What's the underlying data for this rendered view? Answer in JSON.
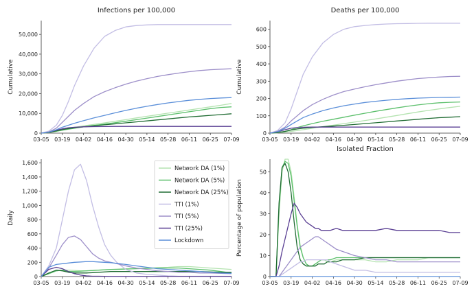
{
  "x_dates": [
    "03-05",
    "03-19",
    "04-02",
    "04-16",
    "04-30",
    "05-14",
    "05-28",
    "06-11",
    "06-25",
    "07-09"
  ],
  "colors": {
    "Network DA (1%)": "#b4e3b0",
    "Network DA (5%)": "#5bbf6b",
    "Network DA (25%)": "#1f6b32",
    "TTI (1%)": "#c2bde4",
    "TTI (5%)": "#9d8fc9",
    "TTI (25%)": "#5a3f93",
    "Lockdown": "#5b8fd9"
  },
  "legend_order": [
    "Network DA (1%)",
    "Network DA (5%)",
    "Network DA (25%)",
    "TTI (1%)",
    "TTI (5%)",
    "TTI (25%)",
    "Lockdown"
  ],
  "chart_data": [
    {
      "id": "infections",
      "type": "line",
      "title": "Infections per 100,000",
      "xlabel": "",
      "ylabel": "Cumulative",
      "ylim": [
        0,
        57000
      ],
      "yticks": [
        0,
        10000,
        20000,
        30000,
        40000,
        50000
      ],
      "ytick_labels": [
        "0",
        "10,000",
        "20,000",
        "30,000",
        "40,000",
        "50,000"
      ],
      "xtick_labels": [
        "03-05",
        "03-19",
        "04-02",
        "04-16",
        "04-30",
        "05-14",
        "05-28",
        "06-11",
        "06-25",
        "07-09"
      ],
      "x": [
        0,
        5,
        10,
        14,
        18,
        22,
        28,
        35,
        42,
        49,
        56,
        63,
        70,
        77,
        84,
        91,
        98,
        105,
        112,
        119,
        126
      ],
      "series": [
        {
          "name": "Network DA (1%)",
          "values": [
            0,
            300,
            1000,
            1700,
            2300,
            2900,
            3700,
            4400,
            5200,
            6000,
            6800,
            7700,
            8500,
            9300,
            10100,
            10900,
            11700,
            12500,
            13300,
            14100,
            15000
          ]
        },
        {
          "name": "Network DA (5%)",
          "values": [
            0,
            280,
            900,
            1500,
            2000,
            2500,
            3200,
            3900,
            4600,
            5300,
            6000,
            6800,
            7600,
            8400,
            9200,
            10000,
            10800,
            11600,
            12400,
            13000,
            13300
          ]
        },
        {
          "name": "Network DA (25%)",
          "values": [
            0,
            350,
            1100,
            1800,
            2300,
            2700,
            3200,
            3700,
            4200,
            4700,
            5200,
            5700,
            6200,
            6700,
            7200,
            7700,
            8200,
            8600,
            9000,
            9400,
            9800
          ]
        },
        {
          "name": "TTI (1%)",
          "values": [
            0,
            1000,
            4000,
            9000,
            16000,
            24000,
            34000,
            43000,
            49000,
            52000,
            53800,
            54500,
            54800,
            55000,
            55000,
            55000,
            55000,
            55000,
            55000,
            55000,
            55000
          ]
        },
        {
          "name": "TTI (5%)",
          "values": [
            0,
            600,
            2500,
            5500,
            8500,
            11500,
            15000,
            18500,
            21000,
            23000,
            24800,
            26300,
            27600,
            28700,
            29600,
            30400,
            31100,
            31700,
            32100,
            32400,
            32600
          ]
        },
        {
          "name": "TTI (25%)",
          "values": [
            0,
            500,
            1500,
            2200,
            2700,
            3000,
            3200,
            3300,
            3350,
            3400,
            3400,
            3400,
            3400,
            3400,
            3400,
            3400,
            3400,
            3400,
            3400,
            3400,
            3400
          ]
        },
        {
          "name": "Lockdown",
          "values": [
            0,
            500,
            1700,
            3000,
            4000,
            5000,
            6300,
            7700,
            9000,
            10300,
            11500,
            12600,
            13600,
            14500,
            15300,
            16000,
            16600,
            17100,
            17500,
            17800,
            18000
          ]
        }
      ]
    },
    {
      "id": "deaths",
      "type": "line",
      "title": "Deaths per 100,000",
      "xlabel": "",
      "ylabel": "Cumulative",
      "ylim": [
        0,
        650
      ],
      "yticks": [
        0,
        100,
        200,
        300,
        400,
        500,
        600
      ],
      "ytick_labels": [
        "0",
        "100",
        "200",
        "300",
        "400",
        "500",
        "600"
      ],
      "xtick_labels": [
        "03-05",
        "03-19",
        "04-02",
        "04-16",
        "04-30",
        "05-14",
        "05-28",
        "06-11",
        "06-25",
        "07-09"
      ],
      "x": [
        0,
        5,
        10,
        14,
        18,
        22,
        28,
        35,
        42,
        49,
        56,
        63,
        70,
        77,
        84,
        91,
        98,
        105,
        112,
        119,
        126
      ],
      "series": [
        {
          "name": "Network DA (1%)",
          "values": [
            0,
            2,
            6,
            10,
            15,
            20,
            28,
            37,
            46,
            55,
            64,
            73,
            82,
            92,
            102,
            112,
            122,
            131,
            140,
            148,
            155
          ]
        },
        {
          "name": "Network DA (5%)",
          "values": [
            0,
            3,
            10,
            20,
            32,
            42,
            55,
            68,
            80,
            92,
            104,
            115,
            126,
            136,
            146,
            155,
            163,
            170,
            175,
            178,
            180
          ]
        },
        {
          "name": "Network DA (25%)",
          "values": [
            0,
            3,
            10,
            18,
            24,
            28,
            33,
            37,
            41,
            45,
            50,
            55,
            60,
            65,
            70,
            75,
            80,
            85,
            89,
            92,
            95
          ]
        },
        {
          "name": "TTI (1%)",
          "values": [
            0,
            15,
            60,
            140,
            240,
            340,
            440,
            520,
            570,
            600,
            615,
            622,
            627,
            630,
            632,
            633,
            634,
            635,
            635,
            635,
            635
          ]
        },
        {
          "name": "TTI (5%)",
          "values": [
            0,
            10,
            35,
            70,
            100,
            130,
            165,
            195,
            220,
            240,
            255,
            268,
            280,
            290,
            300,
            308,
            315,
            320,
            324,
            327,
            328
          ]
        },
        {
          "name": "TTI (25%)",
          "values": [
            0,
            8,
            20,
            28,
            32,
            34,
            35,
            35,
            35,
            35,
            35,
            35,
            35,
            35,
            35,
            35,
            35,
            35,
            35,
            35,
            35
          ]
        },
        {
          "name": "Lockdown",
          "values": [
            0,
            8,
            28,
            50,
            70,
            90,
            110,
            130,
            145,
            158,
            168,
            177,
            184,
            190,
            195,
            199,
            202,
            204,
            206,
            207,
            208
          ]
        }
      ]
    },
    {
      "id": "daily",
      "type": "line",
      "title": "",
      "xlabel": "",
      "ylabel": "Daily",
      "ylim": [
        0,
        1650
      ],
      "yticks": [
        0,
        200,
        400,
        600,
        800,
        1000,
        1200,
        1400,
        1600
      ],
      "ytick_labels": [
        "0",
        "200",
        "400",
        "600",
        "800",
        "1,000",
        "1,200",
        "1,400",
        "1,600"
      ],
      "xtick_labels": [
        "03-05",
        "03-19",
        "04-02",
        "04-16",
        "04-30",
        "05-14",
        "05-28",
        "06-11",
        "06-25",
        "07-09"
      ],
      "x": [
        0,
        5,
        10,
        14,
        18,
        22,
        26,
        30,
        34,
        38,
        42,
        46,
        50,
        56,
        63,
        70,
        77,
        84,
        91,
        98,
        105,
        112,
        119,
        126
      ],
      "series": [
        {
          "name": "Network DA (1%)",
          "values": [
            0,
            40,
            80,
            90,
            90,
            85,
            80,
            80,
            85,
            90,
            95,
            100,
            105,
            110,
            115,
            120,
            125,
            130,
            140,
            140,
            130,
            120,
            110,
            100
          ]
        },
        {
          "name": "Network DA (5%)",
          "values": [
            0,
            40,
            80,
            90,
            70,
            70,
            75,
            80,
            85,
            90,
            95,
            100,
            100,
            105,
            110,
            115,
            120,
            120,
            120,
            110,
            100,
            90,
            70,
            50
          ]
        },
        {
          "name": "Network DA (25%)",
          "values": [
            0,
            50,
            90,
            80,
            60,
            50,
            50,
            50,
            55,
            60,
            65,
            70,
            70,
            70,
            70,
            70,
            70,
            70,
            70,
            70,
            70,
            65,
            60,
            60
          ]
        },
        {
          "name": "TTI (1%)",
          "values": [
            0,
            150,
            400,
            800,
            1200,
            1500,
            1580,
            1350,
            1000,
            700,
            450,
            300,
            200,
            100,
            50,
            30,
            20,
            10,
            5,
            5,
            5,
            5,
            5,
            5
          ]
        },
        {
          "name": "TTI (5%)",
          "values": [
            0,
            120,
            300,
            450,
            550,
            570,
            520,
            420,
            320,
            260,
            220,
            200,
            180,
            150,
            120,
            100,
            80,
            70,
            60,
            60,
            50,
            50,
            45,
            40
          ]
        },
        {
          "name": "TTI (25%)",
          "values": [
            0,
            100,
            130,
            110,
            70,
            40,
            20,
            10,
            5,
            5,
            3,
            2,
            2,
            2,
            2,
            2,
            2,
            2,
            2,
            2,
            2,
            2,
            2,
            2
          ]
        },
        {
          "name": "Lockdown",
          "values": [
            0,
            130,
            170,
            180,
            190,
            200,
            205,
            210,
            210,
            205,
            200,
            195,
            185,
            170,
            150,
            130,
            110,
            100,
            90,
            80,
            70,
            60,
            50,
            45
          ]
        }
      ]
    },
    {
      "id": "isolated",
      "type": "line",
      "title": "Isolated Fraction",
      "xlabel": "",
      "ylabel": "Percentage of population",
      "ylim": [
        0,
        56
      ],
      "yticks": [
        0,
        10,
        20,
        30,
        40,
        50
      ],
      "ytick_labels": [
        "0",
        "10",
        "20",
        "30",
        "40",
        "50"
      ],
      "xtick_labels": [
        "03-05",
        "03-19",
        "04-02",
        "04-16",
        "04-30",
        "05-14",
        "05-28",
        "06-11",
        "06-25",
        "07-09"
      ],
      "x": [
        0,
        4,
        6,
        8,
        10,
        12,
        14,
        16,
        18,
        20,
        22,
        24,
        26,
        28,
        30,
        32,
        34,
        36,
        38,
        40,
        44,
        48,
        52,
        56,
        63,
        70,
        77,
        84,
        91,
        98,
        105,
        112,
        119,
        126
      ],
      "series": [
        {
          "name": "Network DA (1%)",
          "values": [
            0,
            0,
            30,
            50,
            56,
            56,
            50,
            38,
            25,
            15,
            9,
            6,
            5,
            5,
            6,
            7,
            8,
            8,
            7,
            7,
            8,
            8,
            8,
            8,
            8,
            7,
            7,
            8,
            8,
            8,
            9,
            9,
            9,
            9
          ]
        },
        {
          "name": "Network DA (5%)",
          "values": [
            0,
            0,
            33,
            52,
            55,
            54,
            48,
            36,
            24,
            14,
            9,
            6,
            5,
            5,
            6,
            7,
            8,
            8,
            8,
            8,
            9,
            9,
            9,
            9,
            9,
            9,
            9,
            9,
            9,
            9,
            9,
            9,
            9,
            9
          ]
        },
        {
          "name": "Network DA (25%)",
          "values": [
            0,
            0,
            35,
            52,
            54,
            50,
            40,
            26,
            14,
            8,
            6,
            5,
            5,
            5,
            5,
            6,
            6,
            6,
            7,
            7,
            7,
            8,
            8,
            8,
            9,
            9,
            9,
            9,
            9,
            9,
            9,
            9,
            9,
            9
          ]
        },
        {
          "name": "TTI (1%)",
          "values": [
            0,
            0,
            0,
            1,
            2,
            3,
            4,
            5,
            6,
            7,
            7,
            8,
            8,
            8,
            8,
            8,
            8,
            8,
            8,
            7,
            6,
            5,
            4,
            3,
            3,
            2,
            2,
            2,
            2,
            2,
            2,
            2,
            2,
            2
          ]
        },
        {
          "name": "TTI (5%)",
          "values": [
            0,
            0,
            0,
            2,
            4,
            6,
            8,
            10,
            12,
            14,
            15,
            16,
            17,
            18,
            19,
            19,
            18,
            17,
            16,
            15,
            13,
            12,
            11,
            10,
            9,
            8,
            8,
            7,
            7,
            7,
            7,
            7,
            7,
            7
          ]
        },
        {
          "name": "TTI (25%)",
          "values": [
            0,
            0,
            5,
            12,
            18,
            24,
            30,
            35,
            33,
            30,
            28,
            26,
            25,
            24,
            23,
            23,
            22,
            22,
            22,
            22,
            23,
            22,
            22,
            22,
            22,
            22,
            23,
            22,
            22,
            22,
            22,
            22,
            21,
            21
          ]
        },
        {
          "name": "Lockdown",
          "values": [
            0,
            0,
            0,
            0,
            0,
            0,
            0,
            0,
            0,
            0,
            0,
            0,
            0,
            0,
            0,
            0,
            0,
            0,
            0,
            0,
            0,
            0,
            0,
            0,
            0,
            0,
            0,
            0,
            0,
            0,
            0,
            0,
            0,
            0
          ]
        }
      ]
    }
  ]
}
